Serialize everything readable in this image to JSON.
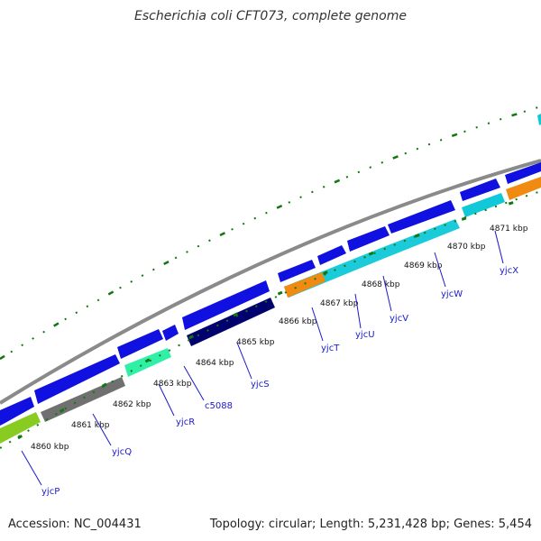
{
  "title": "Escherichia coli CFT073, complete genome",
  "footer": {
    "accession": "Accession: NC_004431",
    "summary": "Topology: circular; Length: 5,231,428 bp; Genes: 5,454"
  },
  "colors": {
    "backbone": "#8a8a8a",
    "forward_gene": "#1010e0",
    "dark_blue": "#00006e",
    "cyan": "#10c8d8",
    "teal_green": "#30f0a8",
    "orange": "#f08a10",
    "lime": "#88cc22",
    "gray_gene": "#707070",
    "tick_green": "#117711",
    "label_blue": "#1a1acc"
  },
  "kbp_labels": [
    "4860 kbp",
    "4861 kbp",
    "4862 kbp",
    "4863 kbp",
    "4864 kbp",
    "4865 kbp",
    "4866 kbp",
    "4867 kbp",
    "4868 kbp",
    "4869 kbp",
    "4870 kbp",
    "4871 kbp"
  ],
  "gene_labels": [
    "yjcP",
    "yjcQ",
    "yjcR",
    "c5088",
    "yjcS",
    "yjcT",
    "yjcU",
    "yjcV",
    "yjcW",
    "yjcX"
  ]
}
